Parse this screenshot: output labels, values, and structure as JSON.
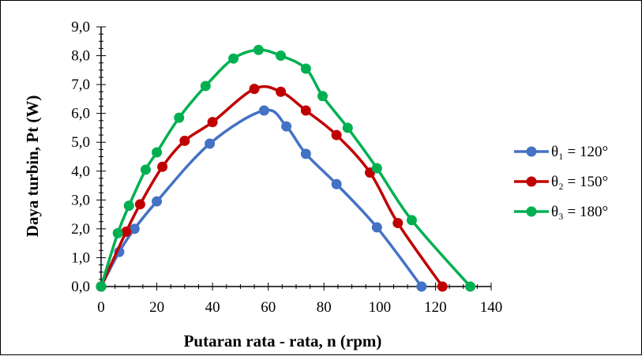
{
  "chart_data": {
    "type": "line",
    "xlabel": "Putaran rata - rata, n (rpm)",
    "ylabel": "Daya turbin, Pt (W)",
    "xlim": [
      0,
      140
    ],
    "ylim": [
      0,
      9
    ],
    "x_ticks": [
      "0",
      "20",
      "40",
      "60",
      "80",
      "100",
      "120",
      "140"
    ],
    "y_ticks": [
      "0,0",
      "1,0",
      "2,0",
      "3,0",
      "4,0",
      "5,0",
      "6,0",
      "7,0",
      "8,0",
      "9,0"
    ],
    "grid": false,
    "smooth": true,
    "legend_position": "right",
    "series": [
      {
        "name": "θ₁ = 120°",
        "color": "#4472C4",
        "x": [
          0,
          6.5,
          12,
          20,
          39,
          58.5,
          66.5,
          73.5,
          84.5,
          99,
          115
        ],
        "y": [
          0,
          1.2,
          2.0,
          2.95,
          4.95,
          6.1,
          5.55,
          4.6,
          3.55,
          2.05,
          0
        ]
      },
      {
        "name": "θ₂ = 150°",
        "color": "#C00000",
        "x": [
          0,
          9,
          14,
          22,
          30,
          40,
          55,
          64.5,
          73.5,
          84.5,
          96.5,
          106.5,
          122.5
        ],
        "y": [
          0,
          1.9,
          2.85,
          4.15,
          5.05,
          5.7,
          6.85,
          6.75,
          6.1,
          5.25,
          3.95,
          2.2,
          0
        ]
      },
      {
        "name": "θ₃ = 180°",
        "color": "#00B050",
        "x": [
          0,
          6,
          10,
          16,
          20,
          28,
          37.5,
          47.5,
          56.5,
          64.5,
          73.5,
          79.5,
          88.5,
          99,
          111.5,
          132.5
        ],
        "y": [
          0,
          1.85,
          2.8,
          4.05,
          4.65,
          5.85,
          6.95,
          7.9,
          8.2,
          8.0,
          7.55,
          6.6,
          5.5,
          4.1,
          2.3,
          0
        ]
      }
    ]
  }
}
